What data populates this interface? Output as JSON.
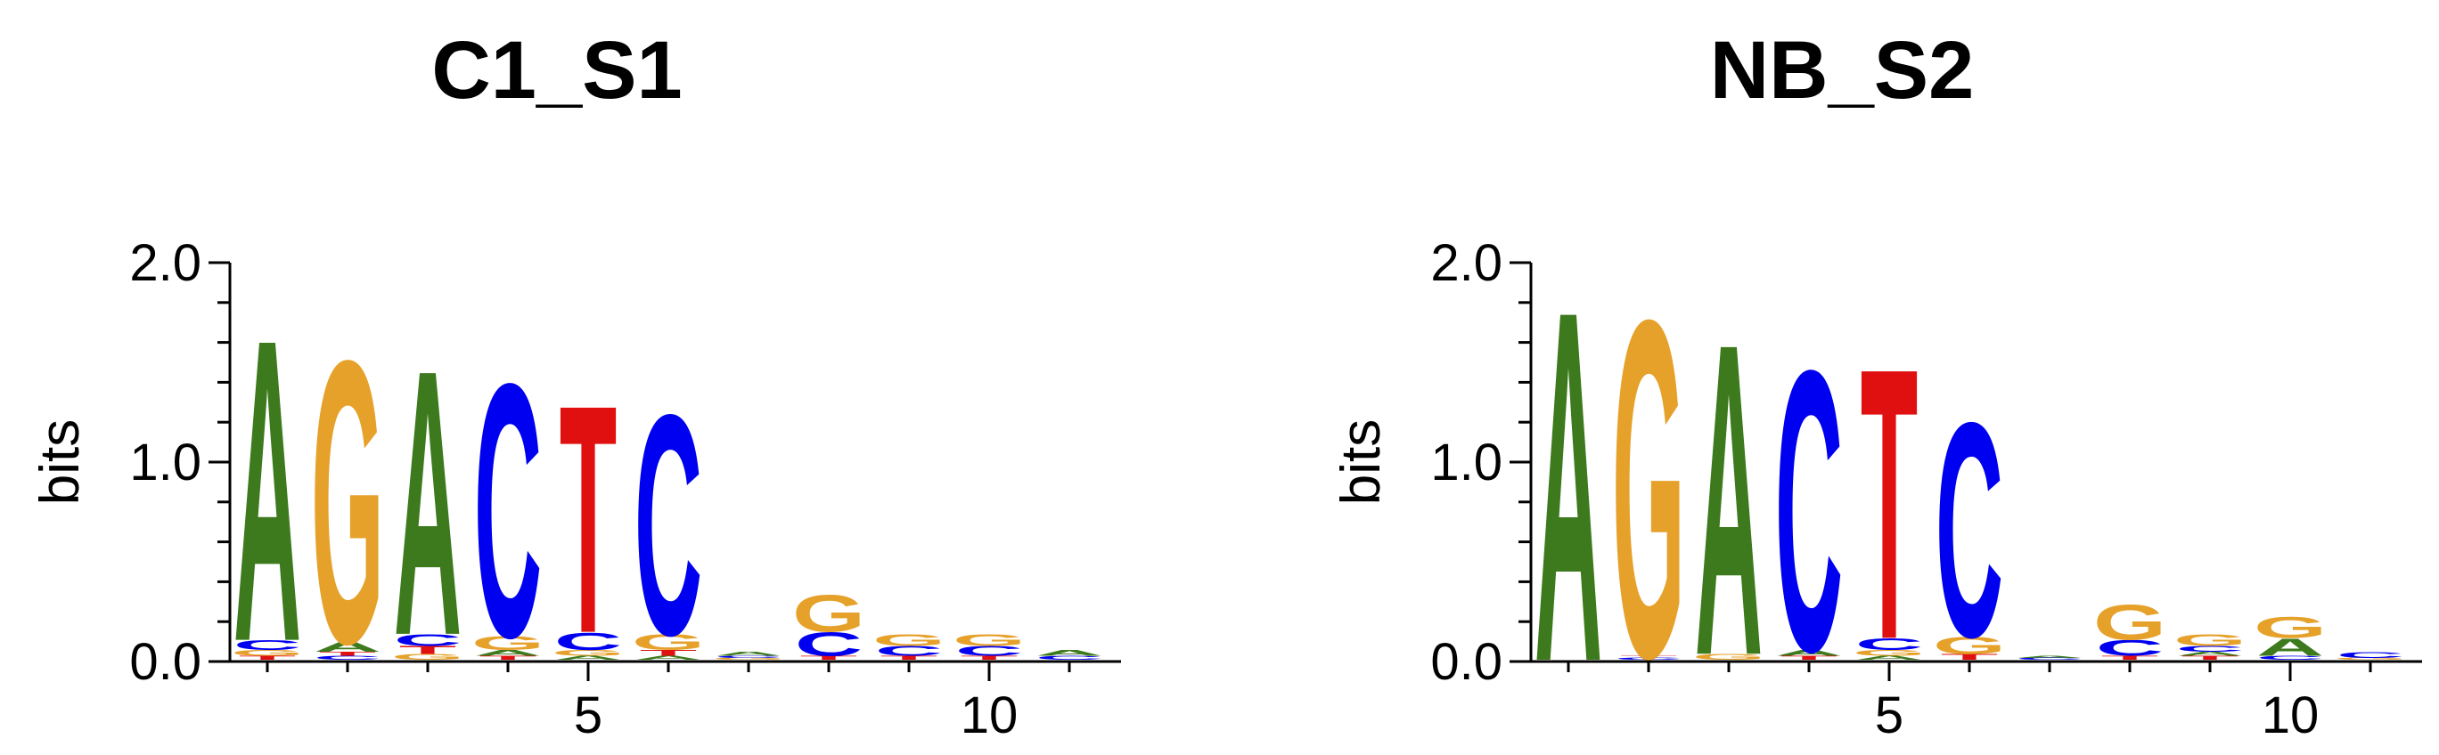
{
  "colors": {
    "A": "#3d7a1d",
    "C": "#0000f0",
    "G": "#e6a12a",
    "T": "#e01010"
  },
  "chart_data": [
    {
      "type": "sequence-logo",
      "title": "C1_S1",
      "ylabel": "bits",
      "ylim": [
        0,
        2
      ],
      "yticks": [
        "0.0",
        "1.0",
        "2.0"
      ],
      "xticks": [
        5,
        10
      ],
      "positions": [
        [
          {
            "l": "T",
            "h": 0.02
          },
          {
            "l": "G",
            "h": 0.03
          },
          {
            "l": "C",
            "h": 0.05
          },
          {
            "l": "A",
            "h": 1.55
          }
        ],
        [
          {
            "l": "C",
            "h": 0.02
          },
          {
            "l": "T",
            "h": 0.02
          },
          {
            "l": "A",
            "h": 0.05
          },
          {
            "l": "G",
            "h": 1.45
          }
        ],
        [
          {
            "l": "G",
            "h": 0.03
          },
          {
            "l": "T",
            "h": 0.04
          },
          {
            "l": "C",
            "h": 0.06
          },
          {
            "l": "A",
            "h": 1.36
          }
        ],
        [
          {
            "l": "T",
            "h": 0.02
          },
          {
            "l": "A",
            "h": 0.03
          },
          {
            "l": "G",
            "h": 0.07
          },
          {
            "l": "C",
            "h": 1.3
          }
        ],
        [
          {
            "l": "A",
            "h": 0.02
          },
          {
            "l": "G",
            "h": 0.03
          },
          {
            "l": "C",
            "h": 0.09
          },
          {
            "l": "T",
            "h": 1.17
          }
        ],
        [
          {
            "l": "A",
            "h": 0.02
          },
          {
            "l": "T",
            "h": 0.03
          },
          {
            "l": "G",
            "h": 0.08
          },
          {
            "l": "C",
            "h": 1.13
          }
        ],
        [
          {
            "l": "G",
            "h": 0.01
          },
          {
            "l": "C",
            "h": 0.01
          },
          {
            "l": "A",
            "h": 0.02
          }
        ],
        [
          {
            "l": "T",
            "h": 0.02
          },
          {
            "l": "C",
            "h": 0.12
          },
          {
            "l": "G",
            "h": 0.19
          }
        ],
        [
          {
            "l": "T",
            "h": 0.02
          },
          {
            "l": "C",
            "h": 0.05
          },
          {
            "l": "G",
            "h": 0.06
          }
        ],
        [
          {
            "l": "T",
            "h": 0.02
          },
          {
            "l": "C",
            "h": 0.05
          },
          {
            "l": "G",
            "h": 0.06
          }
        ],
        [
          {
            "l": "C",
            "h": 0.02
          },
          {
            "l": "A",
            "h": 0.03
          }
        ]
      ]
    },
    {
      "type": "sequence-logo",
      "title": "NB_S2",
      "ylabel": "bits",
      "ylim": [
        0,
        2
      ],
      "yticks": [
        "0.0",
        "1.0",
        "2.0"
      ],
      "xticks": [
        5,
        10
      ],
      "positions": [
        [
          {
            "l": "A",
            "h": 1.8
          }
        ],
        [
          {
            "l": "C",
            "h": 0.01
          },
          {
            "l": "T",
            "h": 0.01
          },
          {
            "l": "G",
            "h": 1.73
          }
        ],
        [
          {
            "l": "G",
            "h": 0.03
          },
          {
            "l": "A",
            "h": 1.6
          }
        ],
        [
          {
            "l": "T",
            "h": 0.02
          },
          {
            "l": "A",
            "h": 0.03
          },
          {
            "l": "C",
            "h": 1.44
          }
        ],
        [
          {
            "l": "A",
            "h": 0.02
          },
          {
            "l": "G",
            "h": 0.03
          },
          {
            "l": "C",
            "h": 0.06
          },
          {
            "l": "T",
            "h": 1.39
          }
        ],
        [
          {
            "l": "T",
            "h": 0.03
          },
          {
            "l": "G",
            "h": 0.09
          },
          {
            "l": "C",
            "h": 1.1
          }
        ],
        [
          {
            "l": "C",
            "h": 0.01
          },
          {
            "l": "A",
            "h": 0.01
          }
        ],
        [
          {
            "l": "T",
            "h": 0.02
          },
          {
            "l": "C",
            "h": 0.08
          },
          {
            "l": "G",
            "h": 0.18
          }
        ],
        [
          {
            "l": "T",
            "h": 0.02
          },
          {
            "l": "A",
            "h": 0.02
          },
          {
            "l": "C",
            "h": 0.03
          },
          {
            "l": "G",
            "h": 0.06
          }
        ],
        [
          {
            "l": "C",
            "h": 0.02
          },
          {
            "l": "A",
            "h": 0.09
          },
          {
            "l": "G",
            "h": 0.11
          }
        ],
        [
          {
            "l": "G",
            "h": 0.01
          },
          {
            "l": "C",
            "h": 0.03
          }
        ]
      ]
    }
  ]
}
